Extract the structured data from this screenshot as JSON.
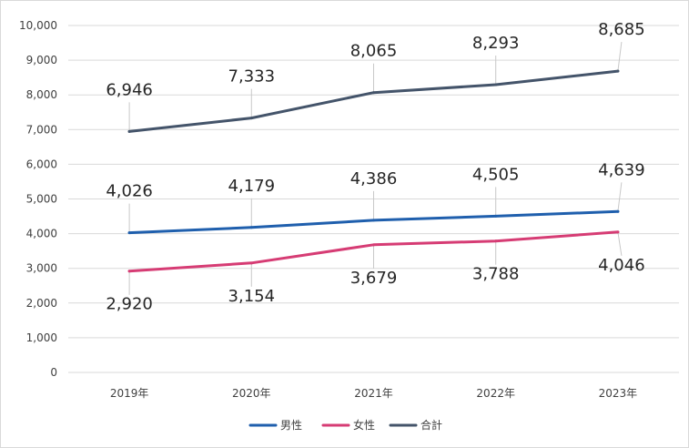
{
  "chart_data": {
    "type": "line",
    "categories": [
      "2019年",
      "2020年",
      "2021年",
      "2022年",
      "2023年"
    ],
    "series": [
      {
        "name": "男性",
        "color": "#1f5fad",
        "values": [
          4026,
          4179,
          4386,
          4505,
          4639
        ],
        "labels": [
          "4,026",
          "4,179",
          "4,386",
          "4,505",
          "4,639"
        ],
        "label_position": "above"
      },
      {
        "name": "女性",
        "color": "#d63c74",
        "values": [
          2920,
          3154,
          3679,
          3788,
          4046
        ],
        "labels": [
          "2,920",
          "3,154",
          "3,679",
          "3,788",
          "4,046"
        ],
        "label_position": "below"
      },
      {
        "name": "合計",
        "color": "#44546a",
        "values": [
          6946,
          7333,
          8065,
          8293,
          8685
        ],
        "labels": [
          "6,946",
          "7,333",
          "8,065",
          "8,293",
          "8,685"
        ],
        "label_position": "above"
      }
    ],
    "yticks": [
      "0",
      "1,000",
      "2,000",
      "3,000",
      "4,000",
      "5,000",
      "6,000",
      "7,000",
      "8,000",
      "9,000",
      "10,000"
    ],
    "ylim": [
      0,
      10000
    ],
    "grid": true,
    "legend_position": "bottom"
  }
}
